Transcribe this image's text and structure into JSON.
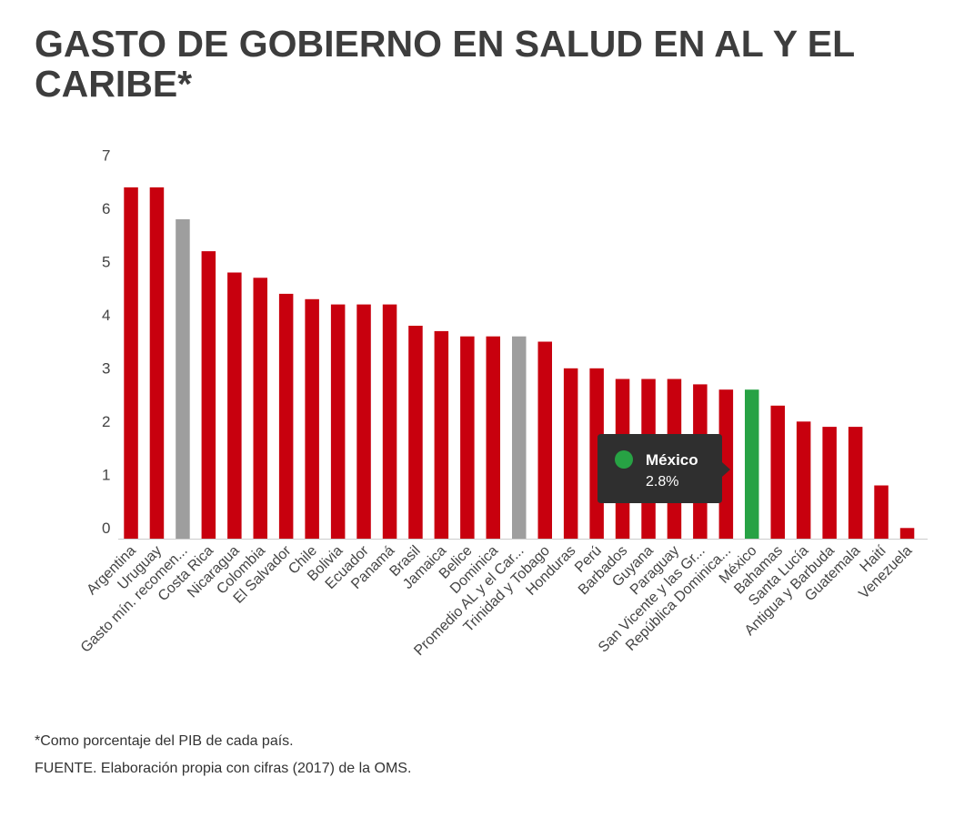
{
  "header": {
    "title": "GASTO DE GOBIERNO EN SALUD EN AL Y EL CARIBE*"
  },
  "footer": {
    "note": "*Como porcentaje del PIB de cada país.",
    "source": "FUENTE. Elaboración propia con cifras (2017) de la OMS."
  },
  "tooltip": {
    "name": "México",
    "value": "2.8%"
  },
  "colors": {
    "red": "#c8000e",
    "gray": "#9e9e9e",
    "green": "#27a244",
    "tooltip_bg": "#2f2f2f"
  },
  "chart_data": {
    "type": "bar",
    "ylim": [
      0,
      7
    ],
    "yticks": [
      "0",
      "1",
      "2",
      "3",
      "4",
      "5",
      "6",
      "7"
    ],
    "grid": false,
    "categories": [
      "Argentina",
      "Uruguay",
      "Gasto mín. recomen...",
      "Costa Rica",
      "Nicaragua",
      "Colombia",
      "El Salvador",
      "Chile",
      "Bolivia",
      "Ecuador",
      "Panamá",
      "Brasil",
      "Jamaica",
      "Belice",
      "Dominica",
      "Promedio AL y el Car...",
      "Trinidad y Tobago",
      "Honduras",
      "Perú",
      "Barbados",
      "Guyana",
      "Paraguay",
      "San Vicente y las Gr...",
      "República Dominica...",
      "México",
      "Bahamas",
      "Santa Lucía",
      "Antigua y Barbuda",
      "Guatemala",
      "Haití",
      "Venezuela"
    ],
    "values": [
      6.6,
      6.6,
      6.0,
      5.4,
      5.0,
      4.9,
      4.6,
      4.5,
      4.4,
      4.4,
      4.4,
      4.0,
      3.9,
      3.8,
      3.8,
      3.8,
      3.7,
      3.2,
      3.2,
      3.0,
      3.0,
      3.0,
      2.9,
      2.8,
      2.8,
      2.5,
      2.2,
      2.1,
      2.1,
      1.0,
      0.2
    ],
    "bar_colors": [
      "red",
      "red",
      "gray",
      "red",
      "red",
      "red",
      "red",
      "red",
      "red",
      "red",
      "red",
      "red",
      "red",
      "red",
      "red",
      "gray",
      "red",
      "red",
      "red",
      "red",
      "red",
      "red",
      "red",
      "red",
      "green",
      "red",
      "red",
      "red",
      "red",
      "red",
      "red"
    ]
  }
}
